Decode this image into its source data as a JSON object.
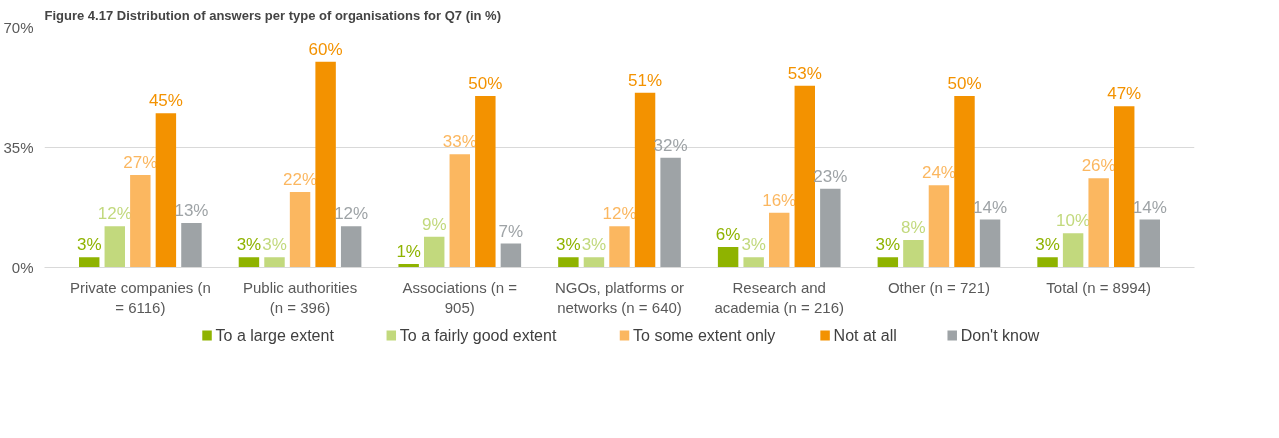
{
  "chart_data": {
    "type": "bar",
    "title": "Figure 4.17     Distribution of answers per type of organisations for Q7 (in %)",
    "categories": [
      "Private companies (n = 6116)",
      "Public authorities (n = 396)",
      "Associations (n = 905)",
      "NGOs, platforms or networks (n = 640)",
      "Research and academia (n = 216)",
      "Other (n = 721)",
      "Total (n = 8994)"
    ],
    "series": [
      {
        "name": "To a large extent",
        "color": "#8fb300",
        "values": [
          3,
          3,
          1,
          3,
          6,
          3,
          3
        ],
        "value_labels": [
          "3%",
          "3%",
          "1%",
          "3%",
          "6%",
          "3%",
          "3%"
        ]
      },
      {
        "name": "To a fairly good extent",
        "color": "#c2d97d",
        "values": [
          12,
          3,
          9,
          3,
          3,
          8,
          10
        ],
        "value_labels": [
          "12%",
          "3%",
          "9%",
          "3%",
          "3%",
          "8%",
          "10%"
        ]
      },
      {
        "name": "To some extent only",
        "color": "#fbb760",
        "values": [
          27,
          22,
          33,
          12,
          16,
          24,
          26
        ],
        "value_labels": [
          "27%",
          "22%",
          "33%",
          "12%",
          "16%",
          "24%",
          "26%"
        ]
      },
      {
        "name": "Not at all",
        "color": "#f39200",
        "values": [
          45,
          60,
          50,
          51,
          53,
          50,
          47
        ],
        "value_labels": [
          "45%",
          "60%",
          "50%",
          "51%",
          "53%",
          "50%",
          "47%"
        ]
      },
      {
        "name": "Don't know",
        "color": "#9ea3a6",
        "values": [
          13,
          12,
          7,
          32,
          23,
          14,
          14
        ],
        "value_labels": [
          "13%",
          "12%",
          "7%",
          "32%",
          "23%",
          "14%",
          "14%"
        ]
      }
    ],
    "ylim": [
      0,
      70
    ],
    "yticks": [
      {
        "value": 0,
        "label": "0%"
      },
      {
        "value": 35,
        "label": "35%"
      },
      {
        "value": 70,
        "label": "70%"
      }
    ],
    "grid": "y",
    "legend": "bottom"
  }
}
